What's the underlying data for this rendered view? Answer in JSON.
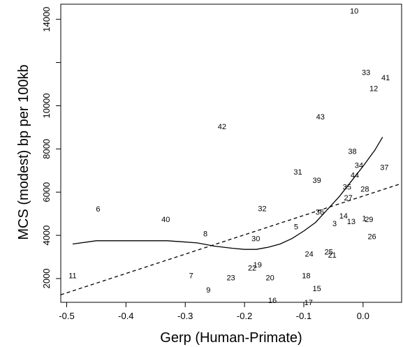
{
  "chart_data": {
    "type": "scatter",
    "xlabel": "Gerp (Human-Primate)",
    "ylabel": "MCS (modest) bp per 100kb",
    "xlim": [
      -0.51,
      0.065
    ],
    "ylim": [
      900,
      14700
    ],
    "xticks": [
      -0.5,
      -0.4,
      -0.3,
      -0.2,
      -0.1,
      0.0
    ],
    "xtick_labels": [
      "-0.5",
      "-0.4",
      "-0.3",
      "-0.2",
      "-0.1",
      "0.0"
    ],
    "yticks": [
      2000,
      4000,
      6000,
      8000,
      10000,
      12000,
      14000
    ],
    "ytick_labels": [
      "2000",
      "4000",
      "6000",
      "8000",
      "10000",
      "",
      "14000"
    ],
    "grid": false,
    "points": [
      {
        "label": "1",
        "x": 0.002,
        "y": 4800
      },
      {
        "label": "3",
        "x": -0.048,
        "y": 4550
      },
      {
        "label": "5",
        "x": -0.113,
        "y": 4400
      },
      {
        "label": "6",
        "x": -0.447,
        "y": 5230
      },
      {
        "label": "7",
        "x": -0.29,
        "y": 2150
      },
      {
        "label": "8",
        "x": -0.266,
        "y": 4090
      },
      {
        "label": "9",
        "x": -0.261,
        "y": 1480
      },
      {
        "label": "10",
        "x": -0.015,
        "y": 14400
      },
      {
        "label": "11",
        "x": -0.49,
        "y": 2150
      },
      {
        "label": "12",
        "x": 0.018,
        "y": 10800
      },
      {
        "label": "13",
        "x": -0.02,
        "y": 4650
      },
      {
        "label": "14",
        "x": -0.033,
        "y": 4900
      },
      {
        "label": "15",
        "x": -0.078,
        "y": 1550
      },
      {
        "label": "16",
        "x": -0.153,
        "y": 1000
      },
      {
        "label": "17",
        "x": -0.092,
        "y": 900
      },
      {
        "label": "18",
        "x": -0.096,
        "y": 2150
      },
      {
        "label": "19",
        "x": -0.178,
        "y": 2650
      },
      {
        "label": "20",
        "x": -0.157,
        "y": 2050
      },
      {
        "label": "21",
        "x": -0.052,
        "y": 3100
      },
      {
        "label": "22",
        "x": -0.187,
        "y": 2500
      },
      {
        "label": "23",
        "x": -0.223,
        "y": 2050
      },
      {
        "label": "24",
        "x": -0.091,
        "y": 3150
      },
      {
        "label": "25",
        "x": -0.058,
        "y": 3250
      },
      {
        "label": "26",
        "x": 0.015,
        "y": 3950
      },
      {
        "label": "27",
        "x": -0.025,
        "y": 5750
      },
      {
        "label": "28",
        "x": 0.003,
        "y": 6150
      },
      {
        "label": "29",
        "x": 0.01,
        "y": 4750
      },
      {
        "label": "30",
        "x": -0.181,
        "y": 3850
      },
      {
        "label": "31",
        "x": -0.11,
        "y": 6950
      },
      {
        "label": "32",
        "x": -0.17,
        "y": 5250
      },
      {
        "label": "33",
        "x": 0.005,
        "y": 11550
      },
      {
        "label": "34",
        "x": -0.007,
        "y": 7250
      },
      {
        "label": "35",
        "x": -0.027,
        "y": 6250
      },
      {
        "label": "36",
        "x": -0.073,
        "y": 5080
      },
      {
        "label": "37",
        "x": 0.036,
        "y": 7150
      },
      {
        "label": "38",
        "x": -0.018,
        "y": 7900
      },
      {
        "label": "39",
        "x": -0.078,
        "y": 6550
      },
      {
        "label": "40",
        "x": -0.333,
        "y": 4750
      },
      {
        "label": "41",
        "x": 0.038,
        "y": 11300
      },
      {
        "label": "42",
        "x": -0.238,
        "y": 9050
      },
      {
        "label": "43",
        "x": -0.072,
        "y": 9500
      },
      {
        "label": "44",
        "x": -0.014,
        "y": 6800
      }
    ],
    "series": [
      {
        "style": "solid",
        "x": [
          -0.49,
          -0.45,
          -0.4,
          -0.33,
          -0.28,
          -0.25,
          -0.22,
          -0.2,
          -0.18,
          -0.16,
          -0.14,
          -0.12,
          -0.1,
          -0.08,
          -0.06,
          -0.04,
          -0.02,
          0.0,
          0.02,
          0.033
        ],
        "y": [
          3600,
          3750,
          3750,
          3750,
          3650,
          3500,
          3400,
          3350,
          3350,
          3450,
          3600,
          3850,
          4200,
          4600,
          5200,
          5800,
          6500,
          7200,
          7950,
          8550
        ]
      },
      {
        "style": "dashed",
        "x": [
          -0.51,
          0.065
        ],
        "y": [
          1250,
          6400
        ]
      }
    ]
  }
}
